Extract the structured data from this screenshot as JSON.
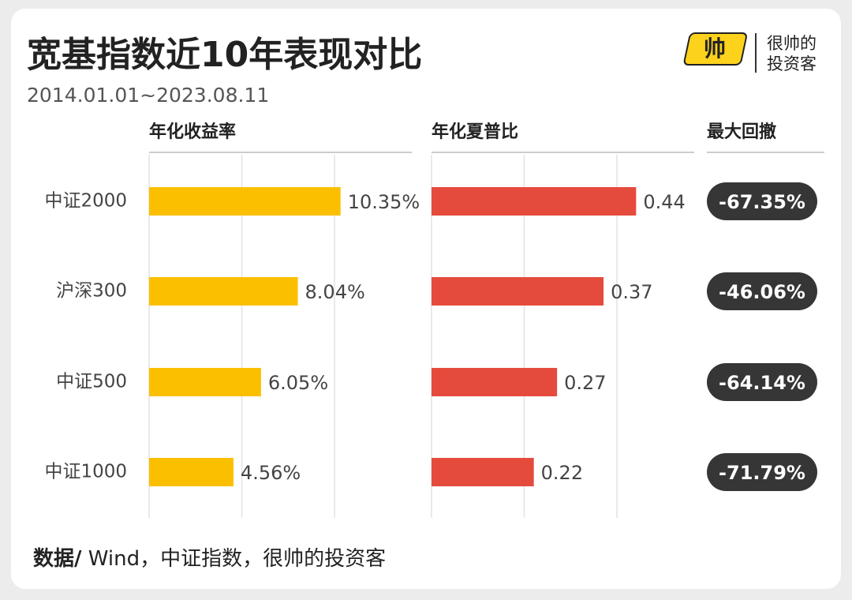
{
  "header": {
    "title": "宽基指数近10年表现对比",
    "subtitle": "2014.01.01~2023.08.11",
    "logo_mark": "帅",
    "logo_line1": "很帅的",
    "logo_line2": "投资客"
  },
  "chart_data": [
    {
      "type": "bar",
      "title": "年化收益率",
      "categories": [
        "中证2000",
        "沪深300",
        "中证500",
        "中证1000"
      ],
      "values": [
        10.35,
        8.04,
        6.05,
        4.56
      ],
      "value_labels": [
        "10.35%",
        "8.04%",
        "6.05%",
        "4.56%"
      ],
      "color": "#fcbf00",
      "xlim": [
        0,
        14.2
      ],
      "grid": true
    },
    {
      "type": "bar",
      "title": "年化夏普比",
      "values": [
        0.44,
        0.37,
        0.27,
        0.22
      ],
      "color": "#e54b3d",
      "xlim": [
        0,
        0.565
      ],
      "grid": true
    },
    {
      "type": "table",
      "title": "最大回撤",
      "values": [
        -67.35,
        -46.06,
        -64.14,
        -71.79
      ],
      "value_labels": [
        "-67.35%",
        "-46.06%",
        "-64.14%",
        "-71.79%"
      ],
      "color": "#363636"
    }
  ],
  "footer": {
    "source_label": "数据/",
    "source_text": " Wind，中证指数，很帅的投资客"
  }
}
